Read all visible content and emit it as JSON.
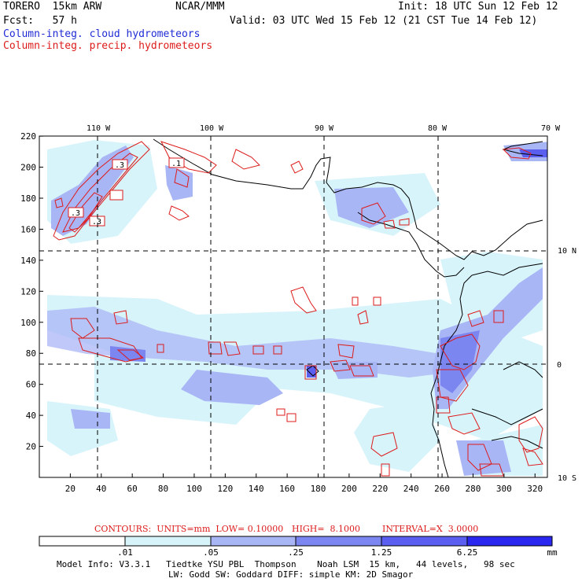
{
  "header": {
    "model": "TORERO  15km ARW",
    "center": "NCAR/MMM",
    "init": "Init: 18 UTC Sun 12 Feb 12",
    "fcst": "Fcst:   57 h",
    "valid": "Valid: 03 UTC Wed 15 Feb 12 (21 CST Tue 14 Feb 12)",
    "field_cloud": "Column-integ. cloud hydrometeors",
    "field_precip": "Column-integ. precip. hydrometeors"
  },
  "colors": {
    "cloud_text": "#1f2bd6",
    "precip_text": "#dd1b1b",
    "shade_1": "#d8f4fb",
    "shade_2": "#a9b6f6",
    "shade_3": "#7c86f0",
    "shade_4": "#5a5ff0",
    "shade_5": "#2a27f0"
  },
  "top_lon_labels": [
    "110 W",
    "100 W",
    "90 W",
    "80 W",
    "70 W"
  ],
  "right_lat_labels": [
    "10 N",
    "0",
    "10 S"
  ],
  "y_ticks": [
    "220",
    "200",
    "180",
    "160",
    "140",
    "120",
    "100",
    "80",
    "60",
    "40",
    "20"
  ],
  "x_ticks": [
    "20",
    "40",
    "60",
    "80",
    "100",
    "120",
    "140",
    "160",
    "180",
    "200",
    "220",
    "240",
    "260",
    "280",
    "300",
    "320"
  ],
  "box_labels": [
    ".3",
    ".1",
    ".3",
    ".3"
  ],
  "contour_info": {
    "units": "CONTOURS:  UNITS=mm  LOW= 0.10000",
    "high": "HIGH=  8.1000",
    "interval": "INTERVAL=X  3.0000"
  },
  "colorbar": {
    "labels": [
      ".01",
      ".05",
      ".25",
      "1.25",
      "6.25"
    ],
    "unit": "mm"
  },
  "footer": {
    "line1": "Model Info: V3.3.1   Tiedtke YSU PBL  Thompson    Noah LSM  15 km,   44 levels,   98 sec",
    "line2": "LW: Godd SW: Goddard DIFF: simple KM: 2D Smagor"
  }
}
